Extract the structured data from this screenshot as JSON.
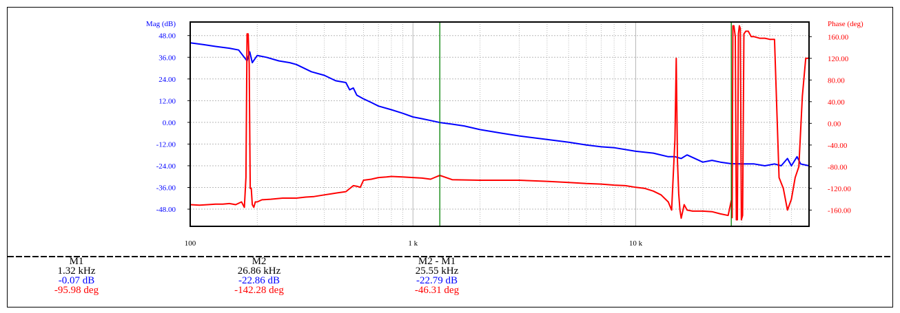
{
  "chart_data": {
    "type": "line",
    "x_scale": "log",
    "xlim": [
      100,
      60000
    ],
    "x_ticks": [
      {
        "value": 100,
        "label": "100"
      },
      {
        "value": 1000,
        "label": "1 k"
      },
      {
        "value": 10000,
        "label": "10 k"
      }
    ],
    "left_axis": {
      "label": "Mag (dB)",
      "ylim": [
        -57.5,
        55.5
      ],
      "ticks": [
        "48.00",
        "36.00",
        "24.00",
        "12.00",
        "0.00",
        "-12.00",
        "-24.00",
        "-36.00",
        "-48.00"
      ],
      "tick_values": [
        48,
        36,
        24,
        12,
        0,
        -12,
        -24,
        -36,
        -48
      ],
      "color": "#0000ff"
    },
    "right_axis": {
      "label": "Phase (deg)",
      "ylim": [
        -190,
        187
      ],
      "ticks": [
        "160.00",
        "120.00",
        "80.00",
        "40.00",
        "0.00",
        "-40.00",
        "-80.00",
        "-120.00",
        "-160.00"
      ],
      "tick_values": [
        160,
        120,
        80,
        40,
        0,
        -40,
        -80,
        -120,
        -160
      ],
      "color": "#ff0000"
    },
    "grid": true,
    "series": [
      {
        "axis": "left",
        "color": "#0000ff",
        "x": [
          100,
          115,
          130,
          150,
          165,
          180,
          185,
          190,
          200,
          220,
          250,
          280,
          300,
          350,
          400,
          450,
          500,
          520,
          540,
          560,
          600,
          650,
          700,
          800,
          900,
          1000,
          1100,
          1200,
          1320,
          1500,
          1700,
          2000,
          2500,
          3000,
          4000,
          5000,
          6000,
          7000,
          8000,
          10000,
          12000,
          14000,
          15000,
          16000,
          17000,
          20000,
          22000,
          24000,
          26860,
          30000,
          34000,
          38000,
          42000,
          45000,
          48000,
          50000,
          53000,
          55000,
          60000
        ],
        "y": [
          44,
          43,
          42,
          41,
          40,
          34,
          39,
          33,
          37,
          36,
          34,
          33,
          32,
          28,
          26,
          23,
          22,
          18,
          19,
          15,
          13,
          11,
          9,
          7,
          5,
          3,
          2,
          1,
          -0.07,
          -1,
          -2,
          -4,
          -6,
          -7.5,
          -9.5,
          -11,
          -12.5,
          -13.5,
          -14,
          -16,
          -17,
          -19,
          -19,
          -20,
          -18,
          -22,
          -21,
          -22,
          -22.86,
          -23,
          -23,
          -24,
          -23,
          -24,
          -20,
          -24,
          -19,
          -23,
          -24
        ]
      },
      {
        "axis": "right",
        "color": "#ff0000",
        "x": [
          100,
          110,
          120,
          130,
          140,
          150,
          160,
          170,
          175,
          178,
          180,
          182,
          184,
          186,
          188,
          190,
          193,
          196,
          200,
          210,
          230,
          260,
          300,
          330,
          360,
          400,
          430,
          460,
          500,
          540,
          560,
          580,
          600,
          650,
          700,
          760,
          800,
          900,
          1000,
          1100,
          1200,
          1320,
          1500,
          2000,
          3000,
          4000,
          5000,
          6000,
          7000,
          8000,
          9000,
          10000,
          11000,
          12000,
          13000,
          14000,
          14500,
          15000,
          15200,
          15400,
          15600,
          15800,
          16000,
          16500,
          17000,
          18000,
          20000,
          22000,
          24000,
          26000,
          26860,
          27100,
          27300,
          27600,
          28000,
          28300,
          28600,
          28900,
          29200,
          29500,
          29800,
          30200,
          30600,
          31200,
          32000,
          33000,
          34000,
          36000,
          38000,
          40000,
          42000,
          44000,
          46000,
          48000,
          50000,
          52000,
          54000,
          56000,
          58000,
          60000
        ],
        "y": [
          -150,
          -151,
          -150,
          -149,
          -149,
          -148,
          -150,
          -145,
          -155,
          -100,
          165,
          165,
          110,
          -120,
          -120,
          -150,
          -155,
          -145,
          -145,
          -141,
          -140,
          -138,
          -138,
          -136,
          -135,
          -132,
          -130,
          -128,
          -126,
          -115,
          -116,
          -118,
          -105,
          -103,
          -100,
          -99,
          -98,
          -99,
          -100,
          -101,
          -103,
          -95.98,
          -104,
          -105,
          -105,
          -107,
          -109,
          -111,
          -112,
          -114,
          -115,
          -118,
          -120,
          -125,
          -132,
          -145,
          -160,
          -30,
          120,
          -70,
          -130,
          -160,
          -175,
          -150,
          -160,
          -162,
          -162,
          -163,
          -167,
          -170,
          -142.28,
          -174,
          180,
          180,
          160,
          -178,
          -178,
          165,
          180,
          175,
          -178,
          -170,
          165,
          170,
          170,
          160,
          160,
          157,
          157,
          155,
          155,
          -100,
          -120,
          -160,
          -140,
          -100,
          -80,
          50,
          120,
          120
        ]
      }
    ],
    "markers": [
      {
        "name": "M1",
        "x": 1320,
        "color": "#008000"
      },
      {
        "name": "M2",
        "x": 26860,
        "color": "#008000"
      }
    ]
  },
  "readout": {
    "m1": {
      "title": "M1",
      "freq": "1.32 kHz",
      "mag": "-0.07 dB",
      "phase": "-95.98 deg"
    },
    "m2": {
      "title": "M2",
      "freq": "26.86 kHz",
      "mag": "-22.86 dB",
      "phase": "-142.28 deg"
    },
    "diff": {
      "title": "M2 - M1",
      "freq": "25.55 kHz",
      "mag": "-22.79 dB",
      "phase": "-46.31 deg"
    }
  }
}
